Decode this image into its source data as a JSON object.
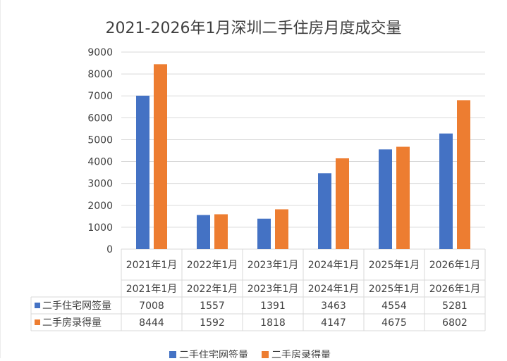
{
  "chart_data": {
    "type": "bar",
    "title": "2021-2026年1月深圳二手住房月度成交量",
    "categories": [
      "2021年1月",
      "2022年1月",
      "2023年1月",
      "2024年1月",
      "2025年1月",
      "2026年1月"
    ],
    "series": [
      {
        "name": "二手住宅网签量",
        "values": [
          7008,
          1557,
          1391,
          3463,
          4554,
          5281
        ],
        "color": "#4472C4"
      },
      {
        "name": "二手房录得量",
        "values": [
          8444,
          1592,
          1818,
          4147,
          4675,
          6802
        ],
        "color": "#ED7D31"
      }
    ],
    "ylim": [
      0,
      9000
    ],
    "yticks": [
      0,
      1000,
      2000,
      3000,
      4000,
      5000,
      6000,
      7000,
      8000,
      9000
    ],
    "grid": true,
    "data_table": true,
    "legend_position": "bottom"
  }
}
